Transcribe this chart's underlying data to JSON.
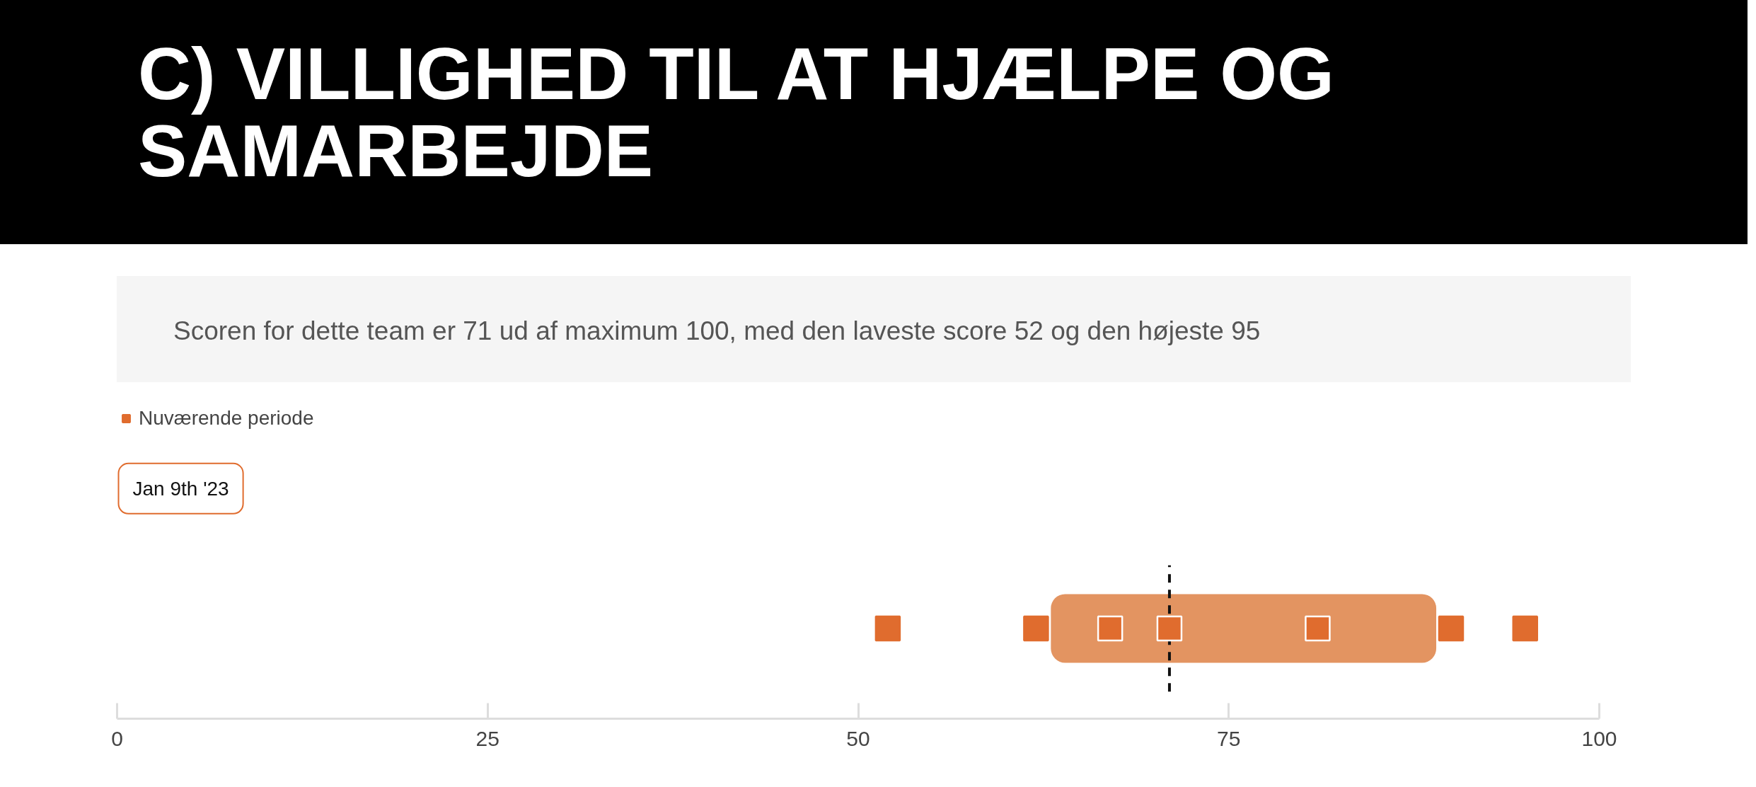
{
  "chart_data": {
    "type": "scatter",
    "orientation": "horizontal",
    "title": "C) VILLIGHED TIL AT HJÆLPE OG SAMARBEJDE",
    "subtitle": "Scoren for dette team er 71 ud af maximum 100, med den laveste score 52 og den højeste 95",
    "categories": [
      null
    ],
    "series": [
      {
        "name": "Nuværende periode",
        "color": "#e06c2e",
        "values": [
          52
        ]
      },
      {
        "color": "#e06c2e",
        "values": [
          62
        ]
      },
      {
        "color": "#e06c2e",
        "values": [
          67
        ]
      },
      {
        "color": "#e06c2e",
        "values": [
          71
        ]
      },
      {
        "color": "#e06c2e",
        "values": [
          81
        ]
      },
      {
        "color": "#e06c2e",
        "values": [
          90
        ]
      },
      {
        "color": "#e06c2e",
        "values": [
          95
        ]
      }
    ],
    "marker": "square",
    "bands": [
      {
        "axis": "x",
        "from": 63,
        "to": 89,
        "color": "#e39461"
      }
    ],
    "ref_lines": [
      {
        "axis": "x",
        "value": 71,
        "line_style": "dashed",
        "color": "#111111"
      }
    ],
    "annotations": [
      "Jan 9th '23"
    ],
    "xlim": [
      0,
      100
    ],
    "xticks": [
      0,
      25,
      50,
      75,
      100
    ],
    "tick_labels": "x",
    "grid": false,
    "legend": "top left"
  }
}
